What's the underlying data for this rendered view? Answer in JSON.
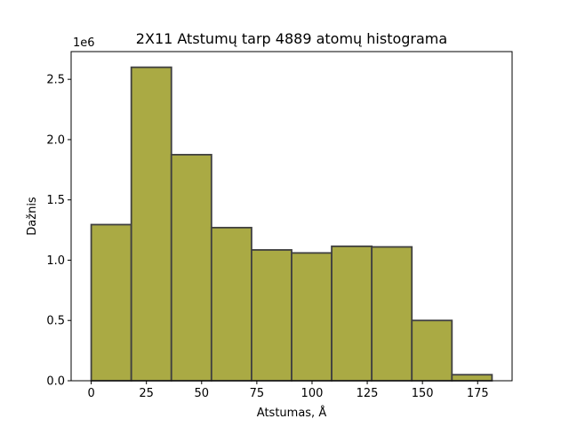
{
  "chart_data": {
    "type": "bar",
    "title": "2X11 Atstumų tarp 4889 atomų histograma",
    "xlabel": "Atstumas, Å",
    "ylabel": "Dažnis",
    "y_scale_label": "1e6",
    "xlim": [
      -9.1,
      190.6
    ],
    "ylim": [
      0,
      2730000
    ],
    "x_ticks": [
      0,
      25,
      50,
      75,
      100,
      125,
      150,
      175
    ],
    "y_ticks": [
      0.0,
      0.5,
      1.0,
      1.5,
      2.0,
      2.5
    ],
    "y_tick_labels": [
      "0.0",
      "0.5",
      "1.0",
      "1.5",
      "2.0",
      "2.5"
    ],
    "bins": [
      {
        "start": 0.0,
        "end": 18.15,
        "count": 1295000
      },
      {
        "start": 18.15,
        "end": 36.3,
        "count": 2600000
      },
      {
        "start": 36.3,
        "end": 54.45,
        "count": 1875000
      },
      {
        "start": 54.45,
        "end": 72.6,
        "count": 1270000
      },
      {
        "start": 72.6,
        "end": 90.75,
        "count": 1085000
      },
      {
        "start": 90.75,
        "end": 108.9,
        "count": 1060000
      },
      {
        "start": 108.9,
        "end": 127.05,
        "count": 1115000
      },
      {
        "start": 127.05,
        "end": 145.2,
        "count": 1110000
      },
      {
        "start": 145.2,
        "end": 163.35,
        "count": 500000
      },
      {
        "start": 163.35,
        "end": 181.5,
        "count": 50000
      }
    ],
    "bar_color": "#aaaa44",
    "edge_color": "#404040",
    "grid": false,
    "legend": "none"
  }
}
